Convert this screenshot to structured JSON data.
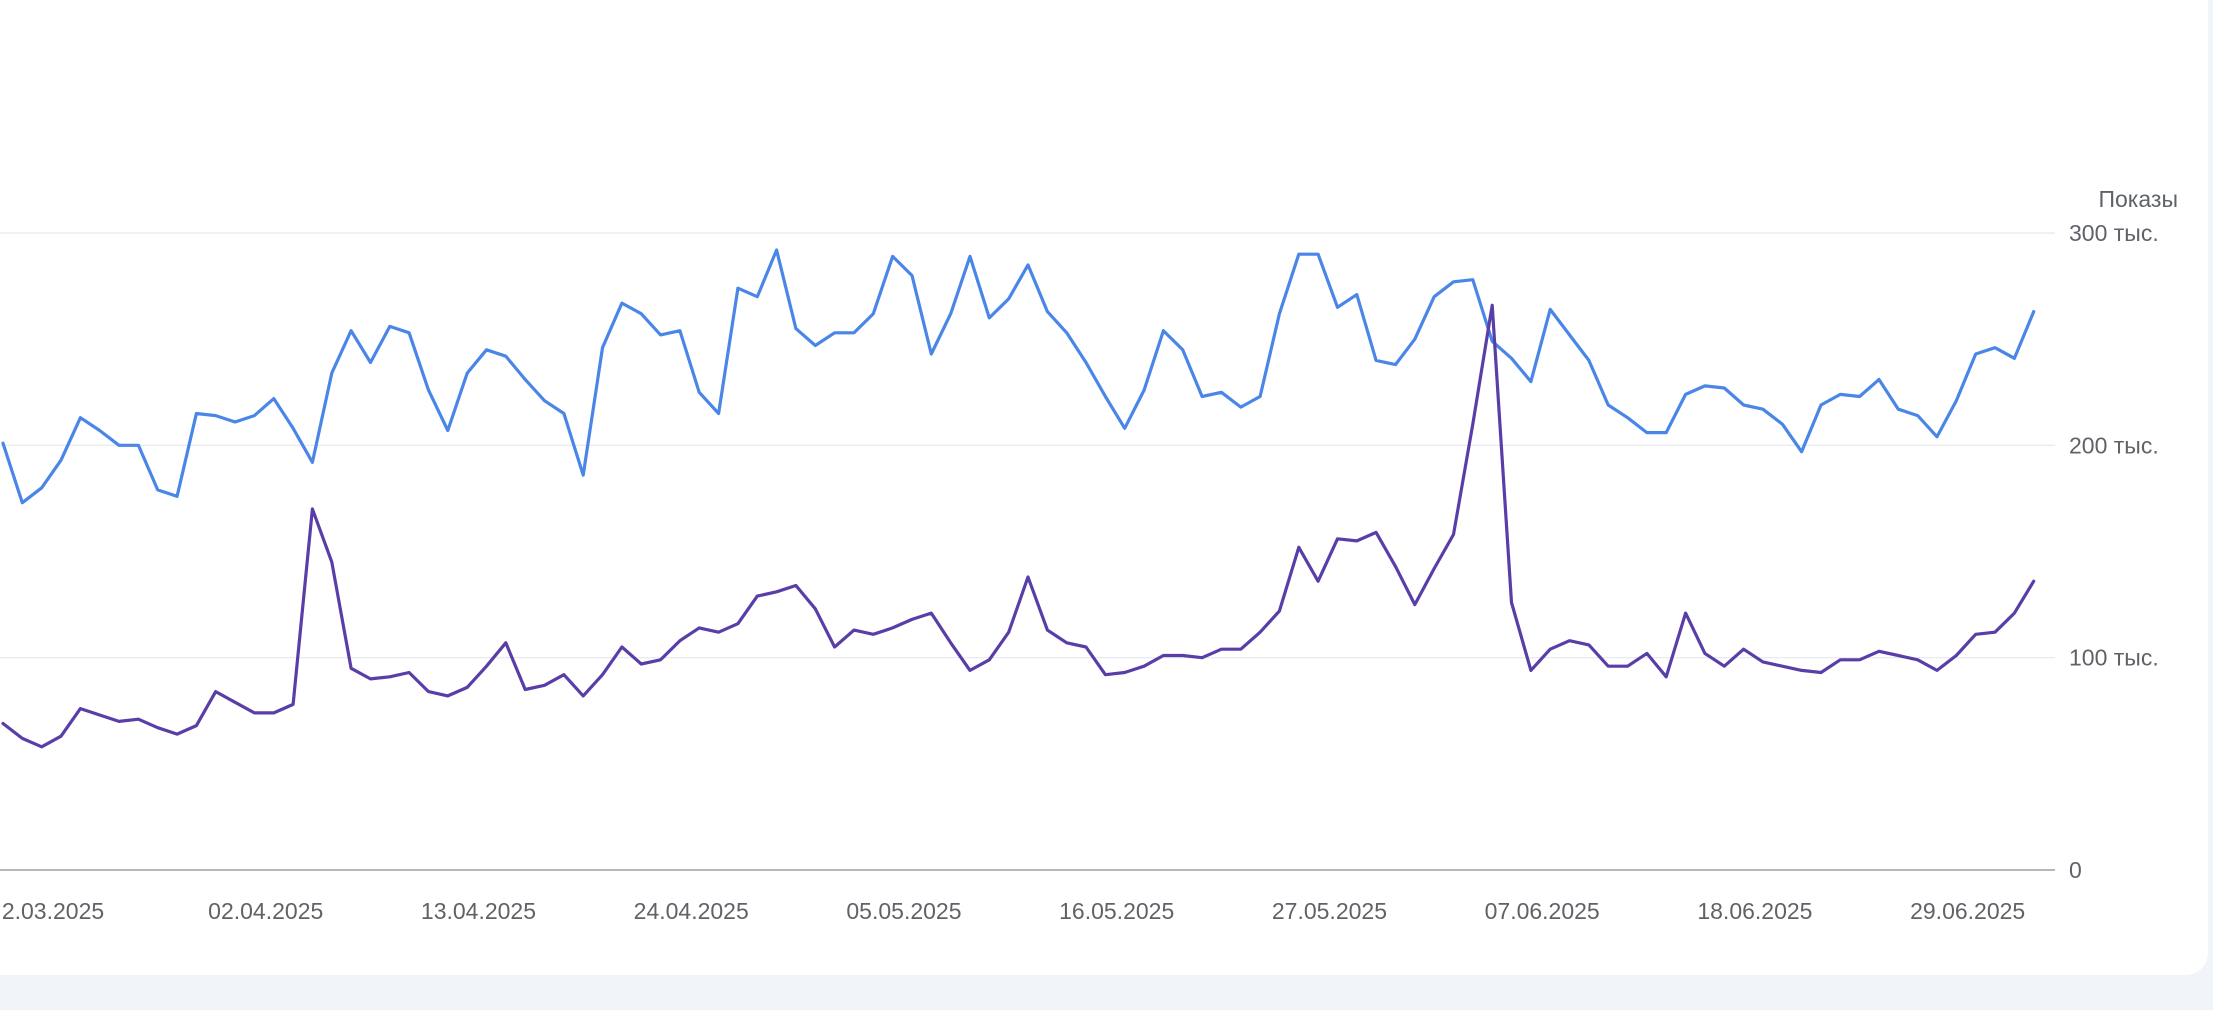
{
  "chart_data": {
    "type": "line",
    "ylabel": "Показы",
    "y_axis_position": "right",
    "ylim": [
      0,
      300000
    ],
    "yticks": [
      {
        "value": 0,
        "label": "0"
      },
      {
        "value": 100000,
        "label": "100 тыс."
      },
      {
        "value": 200000,
        "label": "200 тыс."
      },
      {
        "value": 300000,
        "label": "300 тыс."
      }
    ],
    "xticks": [
      {
        "index": 0,
        "label": "2.03.2025"
      },
      {
        "index": 11,
        "label": "02.04.2025"
      },
      {
        "index": 22,
        "label": "13.04.2025"
      },
      {
        "index": 33,
        "label": "24.04.2025"
      },
      {
        "index": 44,
        "label": "05.05.2025"
      },
      {
        "index": 55,
        "label": "16.05.2025"
      },
      {
        "index": 66,
        "label": "27.05.2025"
      },
      {
        "index": 77,
        "label": "07.06.2025"
      },
      {
        "index": 88,
        "label": "18.06.2025"
      },
      {
        "index": 99,
        "label": "29.06.2025"
      }
    ],
    "grid": true,
    "series": [
      {
        "color": "#4a86e8",
        "values": [
          201000,
          173000,
          180000,
          193000,
          213000,
          207000,
          200000,
          200000,
          179000,
          176000,
          215000,
          214000,
          211000,
          214000,
          222000,
          208000,
          192000,
          234000,
          254000,
          239000,
          256000,
          253000,
          226000,
          207000,
          234000,
          245000,
          242000,
          231000,
          221000,
          215000,
          186000,
          246000,
          267000,
          262000,
          252000,
          254000,
          225000,
          215000,
          274000,
          270000,
          292000,
          255000,
          247000,
          253000,
          253000,
          262000,
          289000,
          280000,
          243000,
          262000,
          289000,
          260000,
          269000,
          285000,
          263000,
          253000,
          239000,
          223000,
          208000,
          226000,
          254000,
          245000,
          223000,
          225000,
          218000,
          223000,
          262000,
          290000,
          290000,
          265000,
          271000,
          240000,
          238000,
          250000,
          270000,
          277000,
          278000,
          249000,
          241000,
          230000,
          264000,
          252000,
          240000,
          219000,
          213000,
          206000,
          206000,
          224000,
          228000,
          227000,
          219000,
          217000,
          210000,
          197000,
          219000,
          224000,
          223000,
          231000,
          217000,
          214000,
          204000,
          221000,
          243000,
          246000,
          241000,
          263000
        ]
      },
      {
        "color": "#5a3ea8",
        "values": [
          69000,
          62000,
          58000,
          63000,
          76000,
          73000,
          70000,
          71000,
          67000,
          64000,
          68000,
          84000,
          79000,
          74000,
          74000,
          78000,
          170000,
          145000,
          95000,
          90000,
          91000,
          93000,
          84000,
          82000,
          86000,
          96000,
          107000,
          85000,
          87000,
          92000,
          82000,
          92000,
          105000,
          97000,
          99000,
          108000,
          114000,
          112000,
          116000,
          129000,
          131000,
          134000,
          123000,
          105000,
          113000,
          111000,
          114000,
          118000,
          121000,
          107000,
          94000,
          99000,
          112000,
          138000,
          113000,
          107000,
          105000,
          92000,
          93000,
          96000,
          101000,
          101000,
          100000,
          104000,
          104000,
          112000,
          122000,
          152000,
          136000,
          156000,
          155000,
          159000,
          143000,
          125000,
          142000,
          158000,
          210000,
          266000,
          126000,
          94000,
          104000,
          108000,
          106000,
          96000,
          96000,
          102000,
          91000,
          121000,
          102000,
          96000,
          104000,
          98000,
          96000,
          94000,
          93000,
          99000,
          99000,
          103000,
          101000,
          99000,
          94000,
          101000,
          111000,
          112000,
          121000,
          136000
        ]
      }
    ]
  }
}
